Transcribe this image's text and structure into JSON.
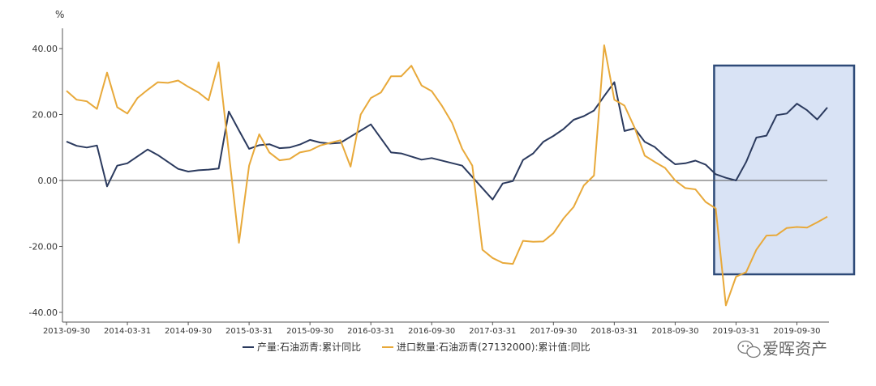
{
  "chart_data": {
    "type": "line",
    "y_unit": "%",
    "ylim": [
      -40,
      40
    ],
    "y_ticks": [
      40,
      20,
      0,
      -20,
      -40
    ],
    "y_tick_labels": [
      "40.00",
      "20.00",
      "0.00",
      "-20.00",
      "-40.00"
    ],
    "x_tick_labels": [
      "2013-09-30",
      "2014-03-31",
      "2014-09-30",
      "2015-03-31",
      "2015-09-30",
      "2016-03-31",
      "2016-09-30",
      "2017-03-31",
      "2017-09-30",
      "2018-03-31",
      "2018-09-30",
      "2019-03-31",
      "2019-09-30"
    ],
    "x_start": "2013-09",
    "x_end": "2019-12",
    "grid": false,
    "legend_position": "bottom",
    "highlight_region": {
      "from": "2019-01",
      "to": "2019-12",
      "color": "#d9e3f5",
      "border": "#2e4a78"
    },
    "series": [
      {
        "name": "产量:石油沥青:累计同比",
        "color": "#2b3a5e",
        "points": [
          [
            "2013-09",
            11.8
          ],
          [
            "2013-10",
            10.5
          ],
          [
            "2013-11",
            10.0
          ],
          [
            "2013-12",
            10.6
          ],
          [
            "2014-01",
            -1.8
          ],
          [
            "2014-02",
            4.5
          ],
          [
            "2014-03",
            5.2
          ],
          [
            "2014-05",
            9.4
          ],
          [
            "2014-06",
            7.7
          ],
          [
            "2014-08",
            3.5
          ],
          [
            "2014-09",
            2.7
          ],
          [
            "2014-10",
            3.1
          ],
          [
            "2014-11",
            3.3
          ],
          [
            "2014-12",
            3.6
          ],
          [
            "2015-01",
            20.9
          ],
          [
            "2015-02",
            15.2
          ],
          [
            "2015-03",
            9.6
          ],
          [
            "2015-04",
            10.7
          ],
          [
            "2015-05",
            11.0
          ],
          [
            "2015-06",
            9.8
          ],
          [
            "2015-07",
            10.0
          ],
          [
            "2015-08",
            10.9
          ],
          [
            "2015-09",
            12.3
          ],
          [
            "2015-10",
            11.5
          ],
          [
            "2015-11",
            11.2
          ],
          [
            "2015-12",
            11.4
          ],
          [
            "2016-03",
            17.0
          ],
          [
            "2016-05",
            8.5
          ],
          [
            "2016-06",
            8.2
          ],
          [
            "2016-08",
            6.3
          ],
          [
            "2016-09",
            6.8
          ],
          [
            "2016-12",
            4.5
          ],
          [
            "2017-03",
            -5.8
          ],
          [
            "2017-04",
            -0.9
          ],
          [
            "2017-05",
            -0.2
          ],
          [
            "2017-06",
            6.2
          ],
          [
            "2017-07",
            8.2
          ],
          [
            "2017-08",
            11.7
          ],
          [
            "2017-09",
            13.5
          ],
          [
            "2017-10",
            15.6
          ],
          [
            "2017-11",
            18.4
          ],
          [
            "2017-12",
            19.5
          ],
          [
            "2018-01",
            21.2
          ],
          [
            "2018-02",
            25.6
          ],
          [
            "2018-03",
            29.8
          ],
          [
            "2018-04",
            15.0
          ],
          [
            "2018-05",
            15.8
          ],
          [
            "2018-06",
            11.7
          ],
          [
            "2018-07",
            10.1
          ],
          [
            "2018-08",
            7.3
          ],
          [
            "2018-09",
            4.9
          ],
          [
            "2018-10",
            5.2
          ],
          [
            "2018-11",
            6.0
          ],
          [
            "2018-12",
            4.8
          ],
          [
            "2019-01",
            1.9
          ],
          [
            "2019-02",
            0.8
          ],
          [
            "2019-03",
            0.0
          ],
          [
            "2019-04",
            5.6
          ],
          [
            "2019-05",
            13.0
          ],
          [
            "2019-06",
            13.6
          ],
          [
            "2019-07",
            19.8
          ],
          [
            "2019-08",
            20.3
          ],
          [
            "2019-09",
            23.3
          ],
          [
            "2019-10",
            21.3
          ],
          [
            "2019-11",
            18.5
          ],
          [
            "2019-12",
            22.1
          ]
        ]
      },
      {
        "name": "进口数量:石油沥青(27132000):累计值:同比",
        "color": "#e8a93a",
        "points": [
          [
            "2013-09",
            27.2
          ],
          [
            "2013-10",
            24.5
          ],
          [
            "2013-11",
            24.0
          ],
          [
            "2013-12",
            21.7
          ],
          [
            "2014-01",
            32.7
          ],
          [
            "2014-02",
            22.2
          ],
          [
            "2014-03",
            20.3
          ],
          [
            "2014-04",
            25.0
          ],
          [
            "2014-05",
            27.5
          ],
          [
            "2014-06",
            29.8
          ],
          [
            "2014-07",
            29.6
          ],
          [
            "2014-08",
            30.3
          ],
          [
            "2014-09",
            28.4
          ],
          [
            "2014-10",
            26.7
          ],
          [
            "2014-11",
            24.3
          ],
          [
            "2014-12",
            35.8
          ],
          [
            "2015-02",
            -18.9
          ],
          [
            "2015-03",
            4.5
          ],
          [
            "2015-04",
            14.0
          ],
          [
            "2015-05",
            8.5
          ],
          [
            "2015-06",
            6.1
          ],
          [
            "2015-07",
            6.5
          ],
          [
            "2015-08",
            8.5
          ],
          [
            "2015-09",
            9.1
          ],
          [
            "2015-10",
            10.6
          ],
          [
            "2015-11",
            11.4
          ],
          [
            "2015-12",
            12.2
          ],
          [
            "2016-01",
            4.2
          ],
          [
            "2016-02",
            20.0
          ],
          [
            "2016-03",
            25.0
          ],
          [
            "2016-04",
            26.7
          ],
          [
            "2016-05",
            31.6
          ],
          [
            "2016-06",
            31.6
          ],
          [
            "2016-07",
            34.8
          ],
          [
            "2016-08",
            28.8
          ],
          [
            "2016-09",
            27.1
          ],
          [
            "2016-10",
            22.7
          ],
          [
            "2016-11",
            17.5
          ],
          [
            "2016-12",
            9.6
          ],
          [
            "2017-01",
            4.5
          ],
          [
            "2017-02",
            -21.0
          ],
          [
            "2017-03",
            -23.5
          ],
          [
            "2017-04",
            -25.0
          ],
          [
            "2017-05",
            -25.3
          ],
          [
            "2017-06",
            -18.3
          ],
          [
            "2017-07",
            -18.6
          ],
          [
            "2017-08",
            -18.5
          ],
          [
            "2017-09",
            -16.0
          ],
          [
            "2017-10",
            -11.5
          ],
          [
            "2017-11",
            -8.0
          ],
          [
            "2017-12",
            -1.5
          ],
          [
            "2018-01",
            1.5
          ],
          [
            "2018-02",
            41.0
          ],
          [
            "2018-03",
            24.5
          ],
          [
            "2018-04",
            22.7
          ],
          [
            "2018-05",
            16.0
          ],
          [
            "2018-06",
            7.5
          ],
          [
            "2018-07",
            5.6
          ],
          [
            "2018-08",
            3.8
          ],
          [
            "2018-09",
            0.0
          ],
          [
            "2018-10",
            -2.3
          ],
          [
            "2018-11",
            -2.7
          ],
          [
            "2018-12",
            -6.5
          ],
          [
            "2019-01",
            -8.5
          ],
          [
            "2019-02",
            -37.9
          ],
          [
            "2019-03",
            -29.2
          ],
          [
            "2019-04",
            -27.8
          ],
          [
            "2019-05",
            -21.0
          ],
          [
            "2019-06",
            -16.7
          ],
          [
            "2019-07",
            -16.6
          ],
          [
            "2019-08",
            -14.4
          ],
          [
            "2019-09",
            -14.1
          ],
          [
            "2019-10",
            -14.3
          ],
          [
            "2019-11",
            -12.7
          ],
          [
            "2019-12",
            -11.0
          ]
        ]
      }
    ]
  },
  "watermark": {
    "text": "爱晖资产",
    "icon": "wechat-icon"
  }
}
